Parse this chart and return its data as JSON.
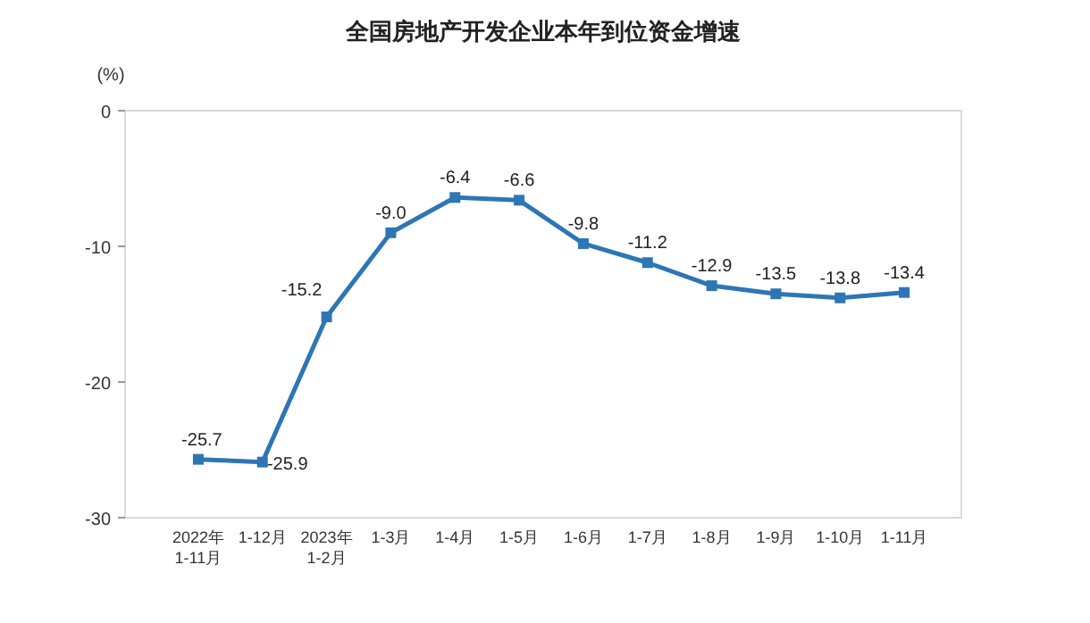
{
  "chart_data": {
    "type": "line",
    "title": "全国房地产开发企业本年到位资金增速",
    "ylabel": "(%)",
    "categories": [
      "2022年\n1-11月",
      "1-12月",
      "2023年\n1-2月",
      "1-3月",
      "1-4月",
      "1-5月",
      "1-6月",
      "1-7月",
      "1-8月",
      "1-9月",
      "1-10月",
      "1-11月"
    ],
    "series": [
      {
        "color": "#2e75b6",
        "values": [
          -25.7,
          -25.9,
          -15.2,
          -9.0,
          -6.4,
          -6.6,
          -9.8,
          -11.2,
          -12.9,
          -13.5,
          -13.8,
          -13.4
        ]
      }
    ],
    "value_labels": [
      "-25.7",
      "-25.9",
      "-15.2",
      "-9.0",
      "-6.4",
      "-6.6",
      "-9.8",
      "-11.2",
      "-12.9",
      "-13.5",
      "-13.8",
      "-13.4"
    ],
    "ylim": [
      -30,
      0
    ],
    "yticks": [
      0,
      -10,
      -20,
      -30
    ],
    "marker": "square"
  }
}
